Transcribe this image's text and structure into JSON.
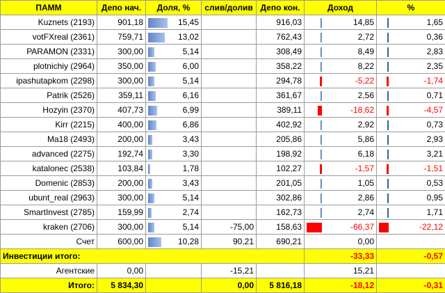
{
  "columns": [
    "ПАММ",
    "Депо нач.",
    "Доля, %",
    "слив/долив",
    "Депо кон.",
    "Доход",
    "%"
  ],
  "rows": [
    {
      "name": "Kuznets (2193)",
      "depo_start": "901,18",
      "share": "15,45",
      "share_v": 15.45,
      "flow": "",
      "depo_end": "916,03",
      "income": "14,85",
      "income_v": 14.85,
      "pct": "1,65",
      "pct_v": 1.65
    },
    {
      "name": "votFXreal (2361)",
      "depo_start": "759,71",
      "share": "13,02",
      "share_v": 13.02,
      "flow": "",
      "depo_end": "762,43",
      "income": "2,72",
      "income_v": 2.72,
      "pct": "0,36",
      "pct_v": 0.36
    },
    {
      "name": "PARAMON (2331)",
      "depo_start": "300,00",
      "share": "5,14",
      "share_v": 5.14,
      "flow": "",
      "depo_end": "308,49",
      "income": "8,49",
      "income_v": 8.49,
      "pct": "2,83",
      "pct_v": 2.83
    },
    {
      "name": "plotnichiy (2964)",
      "depo_start": "350,00",
      "share": "6,00",
      "share_v": 6.0,
      "flow": "",
      "depo_end": "358,22",
      "income": "8,22",
      "income_v": 8.22,
      "pct": "2,35",
      "pct_v": 2.35
    },
    {
      "name": "ipashutapkom (2298)",
      "depo_start": "300,00",
      "share": "5,14",
      "share_v": 5.14,
      "flow": "",
      "depo_end": "294,78",
      "income": "-5,22",
      "income_v": -5.22,
      "pct": "-1,74",
      "pct_v": -1.74
    },
    {
      "name": "Patrik (2526)",
      "depo_start": "359,11",
      "share": "6,16",
      "share_v": 6.16,
      "flow": "",
      "depo_end": "361,67",
      "income": "2,56",
      "income_v": 2.56,
      "pct": "0,71",
      "pct_v": 0.71
    },
    {
      "name": "Hozyin (2370)",
      "depo_start": "407,73",
      "share": "6,99",
      "share_v": 6.99,
      "flow": "",
      "depo_end": "389,11",
      "income": "-18,62",
      "income_v": -18.62,
      "pct": "-4,57",
      "pct_v": -4.57
    },
    {
      "name": "Kirr (2215)",
      "depo_start": "400,00",
      "share": "6,86",
      "share_v": 6.86,
      "flow": "",
      "depo_end": "402,92",
      "income": "2,92",
      "income_v": 2.92,
      "pct": "0,73",
      "pct_v": 0.73
    },
    {
      "name": "Ma18 (2493)",
      "depo_start": "200,00",
      "share": "3,43",
      "share_v": 3.43,
      "flow": "",
      "depo_end": "205,86",
      "income": "5,86",
      "income_v": 5.86,
      "pct": "2,93",
      "pct_v": 2.93
    },
    {
      "name": "advanced (2275)",
      "depo_start": "192,74",
      "share": "3,30",
      "share_v": 3.3,
      "flow": "",
      "depo_end": "198,92",
      "income": "6,18",
      "income_v": 6.18,
      "pct": "3,21",
      "pct_v": 3.21
    },
    {
      "name": "katalonec (2538)",
      "depo_start": "103,84",
      "share": "1,78",
      "share_v": 1.78,
      "flow": "",
      "depo_end": "102,27",
      "income": "-1,57",
      "income_v": -1.57,
      "pct": "-1,51",
      "pct_v": -1.51
    },
    {
      "name": "Domenic (2853)",
      "depo_start": "200,00",
      "share": "3,43",
      "share_v": 3.43,
      "flow": "",
      "depo_end": "201,05",
      "income": "1,05",
      "income_v": 1.05,
      "pct": "0,53",
      "pct_v": 0.53
    },
    {
      "name": "ubunt_real (2963)",
      "depo_start": "300,00",
      "share": "5,14",
      "share_v": 5.14,
      "flow": "",
      "depo_end": "302,86",
      "income": "2,86",
      "income_v": 2.86,
      "pct": "0,95",
      "pct_v": 0.95
    },
    {
      "name": "SmartInvest (2785)",
      "depo_start": "159,99",
      "share": "2,74",
      "share_v": 2.74,
      "flow": "",
      "depo_end": "162,73",
      "income": "2,74",
      "income_v": 2.74,
      "pct": "1,71",
      "pct_v": 1.71
    },
    {
      "name": "kraken (2706)",
      "depo_start": "300,00",
      "share": "5,14",
      "share_v": 5.14,
      "flow": "-75,00",
      "depo_end": "158,63",
      "income": "-66,37",
      "income_v": -66.37,
      "pct": "-22,12",
      "pct_v": -22.12
    },
    {
      "name": "Счет",
      "depo_start": "600,00",
      "share": "10,28",
      "share_v": 10.28,
      "flow": "90,21",
      "depo_end": "690,21",
      "income": "0,00",
      "income_v": 0,
      "pct": "",
      "pct_v": 0
    }
  ],
  "investments_total": {
    "label": "Инвестиции итого:",
    "income": "-33,33",
    "pct": "-0,57"
  },
  "agency": {
    "label": "Агентские",
    "depo_start": "0,00",
    "flow": "-15,21",
    "income": "15,21"
  },
  "total": {
    "label": "Итого:",
    "depo_start": "5 834,30",
    "flow": "0,00",
    "depo_end": "5 816,18",
    "income": "-18,12",
    "pct": "-0,31"
  }
}
